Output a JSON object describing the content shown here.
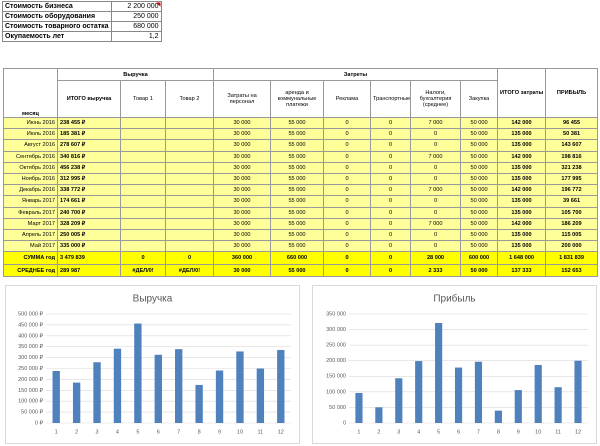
{
  "summary": {
    "rows": [
      [
        "Стоимость бизнеса",
        "2 200 000"
      ],
      [
        "Стоимость оборудования",
        "250 000"
      ],
      [
        "Стоимость товарного остатка",
        "680 000"
      ],
      [
        "Окупаемость лет",
        "1,2"
      ]
    ]
  },
  "table": {
    "headers": {
      "month": "месяц",
      "revenue": "Выручка",
      "costs": "Затреты",
      "total_costs": "ИТОГО затраты",
      "profit": "ПРИБЫЛЬ"
    },
    "columns": [
      "ИТОГО выручка",
      "Товар 1",
      "Товар 2",
      "Затраты на персонал",
      "аренда и коммунальные платежи",
      "Реклама",
      "Транспортные",
      "Налоги, бухгалтерия (среднее)",
      "Закупка"
    ],
    "rows": [
      [
        "Июнь 2016",
        "238 455 ₽",
        null,
        null,
        "30 000",
        "55 000",
        "0",
        "0",
        "7 000",
        "50 000",
        "142 000",
        "96 455"
      ],
      [
        "Июль 2016",
        "185 381 ₽",
        null,
        null,
        "30 000",
        "55 000",
        "0",
        "0",
        "0",
        "50 000",
        "135 000",
        "50 381"
      ],
      [
        "Август 2016",
        "278 607 ₽",
        null,
        null,
        "30 000",
        "55 000",
        "0",
        "0",
        "0",
        "50 000",
        "135 000",
        "143 607"
      ],
      [
        "Сентябрь 2016",
        "340 816 ₽",
        null,
        null,
        "30 000",
        "55 000",
        "0",
        "0",
        "7 000",
        "50 000",
        "142 000",
        "198 816"
      ],
      [
        "Октябрь 2016",
        "456 238 ₽",
        null,
        null,
        "30 000",
        "55 000",
        "0",
        "0",
        "0",
        "50 000",
        "135 000",
        "321 238"
      ],
      [
        "Ноябрь 2016",
        "312 995 ₽",
        null,
        null,
        "30 000",
        "55 000",
        "0",
        "0",
        "0",
        "50 000",
        "135 000",
        "177 995"
      ],
      [
        "Декабрь 2016",
        "338 772 ₽",
        null,
        null,
        "30 000",
        "55 000",
        "0",
        "0",
        "7 000",
        "50 000",
        "142 000",
        "196 772"
      ],
      [
        "Январь 2017",
        "174 661 ₽",
        null,
        null,
        "30 000",
        "55 000",
        "0",
        "0",
        "0",
        "50 000",
        "135 000",
        "39 661"
      ],
      [
        "Февраль 2017",
        "240 700 ₽",
        null,
        null,
        "30 000",
        "55 000",
        "0",
        "0",
        "0",
        "50 000",
        "135 000",
        "105 700"
      ],
      [
        "Март 2017",
        "328 209 ₽",
        null,
        null,
        "30 000",
        "55 000",
        "0",
        "0",
        "7 000",
        "50 000",
        "142 000",
        "186 209"
      ],
      [
        "Апрель 2017",
        "250 005 ₽",
        null,
        null,
        "30 000",
        "55 000",
        "0",
        "0",
        "0",
        "50 000",
        "135 000",
        "115 005"
      ],
      [
        "Май 2017",
        "335 000 ₽",
        null,
        null,
        "30 000",
        "55 000",
        "0",
        "0",
        "0",
        "50 000",
        "135 000",
        "200 000"
      ]
    ],
    "totals": [
      [
        "СУММА год",
        "3 479 839",
        "0",
        "0",
        "360 000",
        "660 000",
        "0",
        "0",
        "28 000",
        "600 000",
        "1 648 000",
        "1 831 839"
      ],
      [
        "СРЕДНЕЕ год",
        "289 987",
        "#ДЕЛ/0!",
        "#ДЕЛ/0!",
        "30 000",
        "55 000",
        "0",
        "0",
        "2 333",
        "50 000",
        "137 333",
        "152 653"
      ]
    ]
  },
  "chart_data": [
    {
      "type": "bar",
      "title": "Выручка",
      "categories": [
        "1",
        "2",
        "3",
        "4",
        "5",
        "6",
        "7",
        "8",
        "9",
        "10",
        "11",
        "12"
      ],
      "values": [
        238455,
        185381,
        278607,
        340816,
        456238,
        312995,
        338772,
        174661,
        240700,
        328209,
        250005,
        335000
      ],
      "color": "#4f81bd",
      "grid": true,
      "ylim": [
        0,
        500000
      ],
      "yticks": [
        {
          "value": 0,
          "label": "0 ₽"
        },
        {
          "value": 50000,
          "label": "50 000 ₽"
        },
        {
          "value": 100000,
          "label": "100 000 ₽"
        },
        {
          "value": 150000,
          "label": "150 000 ₽"
        },
        {
          "value": 200000,
          "label": "200 000 ₽"
        },
        {
          "value": 250000,
          "label": "250 000 ₽"
        },
        {
          "value": 300000,
          "label": "300 000 ₽"
        },
        {
          "value": 350000,
          "label": "350 000 ₽"
        },
        {
          "value": 400000,
          "label": "400 000 ₽"
        },
        {
          "value": 450000,
          "label": "450 000 ₽"
        },
        {
          "value": 500000,
          "label": "500 000 ₽"
        }
      ]
    },
    {
      "type": "bar",
      "title": "Прибыль",
      "categories": [
        "1",
        "2",
        "3",
        "4",
        "5",
        "6",
        "7",
        "8",
        "9",
        "10",
        "11",
        "12"
      ],
      "values": [
        96455,
        50381,
        143607,
        198816,
        321238,
        177995,
        196772,
        39661,
        105700,
        186209,
        115005,
        200000
      ],
      "color": "#4f81bd",
      "grid": true,
      "ylim": [
        0,
        350000
      ],
      "yticks": [
        0,
        {
          "value": 50000,
          "label": "50 000"
        },
        {
          "value": 100000,
          "label": "100 000"
        },
        {
          "value": 150000,
          "label": "150 000"
        },
        {
          "value": 200000,
          "label": "200 000"
        },
        {
          "value": 250000,
          "label": "250 000"
        },
        {
          "value": 300000,
          "label": "300 000"
        },
        {
          "value": 350000,
          "label": "350 000"
        }
      ]
    }
  ]
}
